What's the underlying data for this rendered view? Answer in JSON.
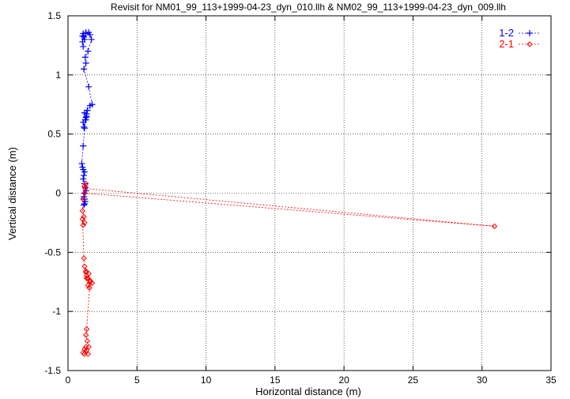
{
  "chart_data": {
    "type": "line",
    "title": "Revisit for NM01_99_113+1999-04-23_dyn_010.llh & NM02_99_113+1999-04-23_dyn_009.llh",
    "xlabel": "Horizontal distance (m)",
    "ylabel": "Vertical distance (m)",
    "xlim": [
      0,
      35
    ],
    "ylim": [
      -1.5,
      1.5
    ],
    "xticks": [
      "0",
      "5",
      "10",
      "15",
      "20",
      "25",
      "30",
      "35"
    ],
    "yticks": [
      "-1.5",
      "-1",
      "-0.5",
      "0",
      "0.5",
      "1",
      "1.5"
    ],
    "grid": true,
    "legend_position": "top-right",
    "series": [
      {
        "name": "1-2",
        "color": "#0000ff",
        "marker": "plus",
        "x": [
          1.05,
          1.1,
          1.2,
          1.3,
          1.15,
          1.05,
          1.1,
          1.3,
          1.5,
          1.6,
          1.7,
          1.45,
          1.25,
          1.3,
          1.15,
          1.5,
          1.75,
          1.6,
          1.4,
          1.35,
          1.3,
          1.35,
          1.2,
          1.1,
          1.15,
          1.25,
          1.4,
          1.3,
          1.2,
          1.1,
          1.0,
          1.05,
          1.1,
          1.2,
          1.15,
          1.1,
          1.2,
          1.25,
          1.3,
          1.2,
          1.15,
          1.2,
          1.25,
          1.2,
          1.15
        ],
        "y": [
          1.33,
          1.35,
          1.3,
          1.36,
          1.32,
          1.28,
          1.24,
          1.35,
          1.36,
          1.34,
          1.3,
          1.2,
          1.15,
          1.1,
          1.05,
          0.9,
          0.75,
          0.74,
          0.7,
          0.65,
          0.62,
          0.67,
          0.68,
          0.6,
          0.56,
          0.62,
          0.7,
          0.64,
          0.55,
          0.4,
          0.25,
          0.22,
          0.2,
          0.18,
          0.15,
          0.12,
          0.08,
          0.05,
          0.02,
          0.0,
          -0.03,
          -0.05,
          -0.07,
          -0.09,
          -0.1
        ]
      },
      {
        "name": "2-1",
        "color": "#ff0000",
        "marker": "diamond",
        "x": [
          1.3,
          1.2,
          1.25,
          30.9,
          1.2,
          1.1,
          1.05,
          1.15,
          1.2,
          1.1,
          1.05,
          1.15,
          1.2,
          1.3,
          1.35,
          1.45,
          1.6,
          1.75,
          1.55,
          1.45,
          1.35,
          1.3,
          1.5,
          1.6,
          1.35,
          1.3,
          1.4,
          1.5,
          1.2,
          1.1,
          1.2,
          1.35,
          1.45,
          1.3
        ],
        "y": [
          0.08,
          0.06,
          0.04,
          -0.28,
          0.0,
          -0.05,
          -0.15,
          -0.2,
          -0.25,
          -0.27,
          -0.22,
          -0.55,
          -0.62,
          -0.66,
          -0.7,
          -0.72,
          -0.74,
          -0.76,
          -0.8,
          -0.78,
          -0.72,
          -0.67,
          -0.68,
          -0.75,
          -1.15,
          -1.2,
          -1.25,
          -1.3,
          -1.32,
          -1.35,
          -1.36,
          -1.33,
          -1.36,
          -1.3
        ]
      }
    ]
  }
}
